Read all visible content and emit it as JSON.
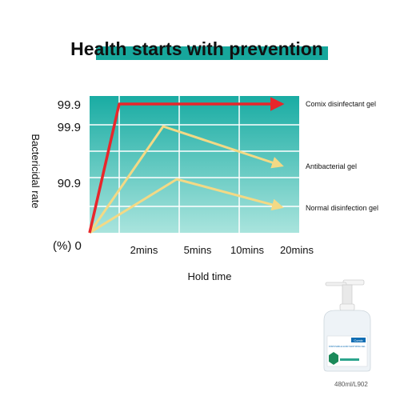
{
  "colors": {
    "title_bar": "#17a79c",
    "plot_top": "#19aca3",
    "plot_bottom": "#a9e4dd",
    "grid": "#ffffff",
    "comix_line": "#e8262b",
    "other_lines": "#f3d985",
    "text": "#111111"
  },
  "product": {
    "brand": "Comix",
    "label": "DISPOSABLE HAND SANITIZING GEL",
    "model": "480ml/L902"
  },
  "chart_data": {
    "type": "line",
    "title": "Health starts with prevention",
    "xlabel": "Hold time",
    "ylabel": "Bactericidal rate",
    "y_axis_prefix": "(%) 0",
    "x": [
      "0",
      "2mins",
      "5mins",
      "10mins",
      "20mins"
    ],
    "x_tick_labels": [
      "2mins",
      "5mins",
      "10mins",
      "20mins"
    ],
    "y_tick_labels": [
      "99.9",
      "99.9",
      "90.9"
    ],
    "grid": true,
    "legend": "right",
    "series": [
      {
        "name": "Comix disinfectant gel",
        "values": [
          0,
          99.9,
          99.9,
          99.9,
          99.9
        ],
        "color": "#e8262b"
      },
      {
        "name": "Antibacterial gel",
        "values": [
          0,
          70,
          99.9,
          85,
          70
        ],
        "color": "#f3d985"
      },
      {
        "name": "Normal disinfection gel",
        "values": [
          0,
          40,
          90.9,
          70,
          55
        ],
        "color": "#f3d985"
      }
    ]
  }
}
